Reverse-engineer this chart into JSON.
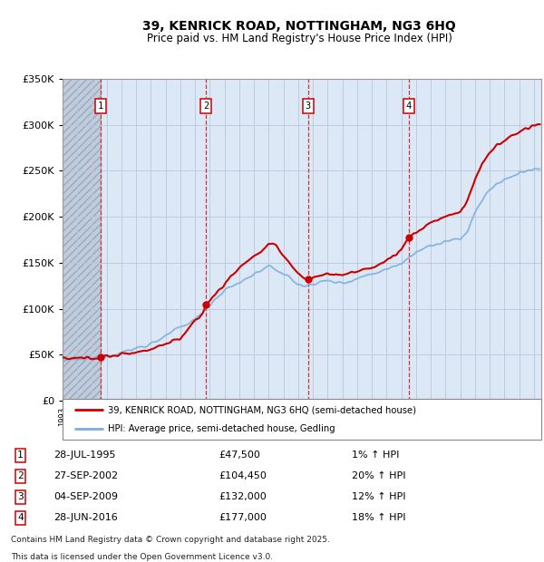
{
  "title1": "39, KENRICK ROAD, NOTTINGHAM, NG3 6HQ",
  "title2": "Price paid vs. HM Land Registry's House Price Index (HPI)",
  "legend_line1": "39, KENRICK ROAD, NOTTINGHAM, NG3 6HQ (semi-detached house)",
  "legend_line2": "HPI: Average price, semi-detached house, Gedling",
  "transactions": [
    {
      "num": 1,
      "date": "28-JUL-1995",
      "price": 47500,
      "hpi_pct": "1%",
      "x_year": 1995.57
    },
    {
      "num": 2,
      "date": "27-SEP-2002",
      "price": 104450,
      "hpi_pct": "20%",
      "x_year": 2002.74
    },
    {
      "num": 3,
      "date": "04-SEP-2009",
      "price": 132000,
      "hpi_pct": "12%",
      "x_year": 2009.67
    },
    {
      "num": 4,
      "date": "28-JUN-2016",
      "price": 177000,
      "hpi_pct": "18%",
      "x_year": 2016.49
    }
  ],
  "footer1": "Contains HM Land Registry data © Crown copyright and database right 2025.",
  "footer2": "This data is licensed under the Open Government Licence v3.0.",
  "bg_color": "#dce8f5",
  "hatch_color": "#c0ccdc",
  "grid_color": "#b8c8dc",
  "price_color": "#cc0000",
  "hpi_color": "#7aaddd",
  "dashed_line_color": "#cc2222",
  "label_box_color": "#ffffff",
  "label_box_edge": "#cc0000",
  "x_min": 1993,
  "x_max": 2025.5,
  "y_min": 0,
  "y_max": 350000
}
